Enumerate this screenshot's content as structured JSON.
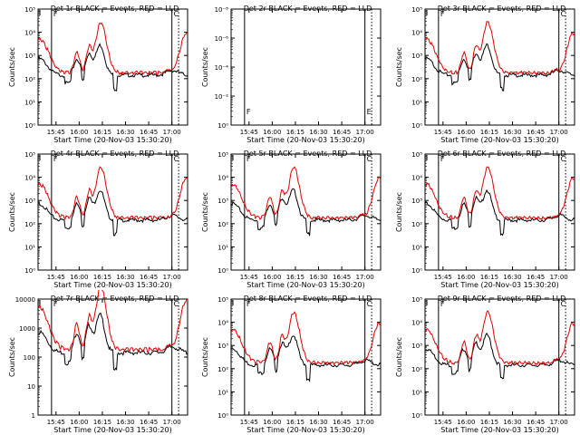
{
  "chart_data": [
    {
      "type": "line",
      "title": "Det 1r BLACK = Events, RED = LLD",
      "xlabel": "Start Time (20-Nov-03 15:30:20)",
      "ylabel": "Counts/sec",
      "x_tick_labels": [
        "15:45",
        "16:00",
        "16:15",
        "16:30",
        "16:45",
        "17:00"
      ],
      "y_tick_labels": [
        "10⁰",
        "10¹",
        "10²",
        "10³",
        "10⁴",
        "10⁵"
      ],
      "ylim": [
        1,
        100000
      ],
      "ylog": true,
      "markers": [
        "F",
        "C"
      ],
      "profile": "normal",
      "series": []
    },
    {
      "type": "line",
      "title": "Det 2r BLACK = Events, RED = LLD",
      "xlabel": "Start Time (20-Nov-03 15:30:20)",
      "ylabel": "Counts/sec",
      "x_tick_labels": [
        "15:45",
        "16:00",
        "16:15",
        "16:30",
        "16:45",
        "17:00"
      ],
      "y_tick_labels": [
        "10⁰",
        "10⁻²",
        "10⁻⁴",
        "10⁻⁶",
        "10⁻⁸"
      ],
      "ylim": [
        1,
        1e-08
      ],
      "ylog": true,
      "markers": [
        "F",
        "E"
      ],
      "profile": "empty",
      "series": []
    },
    {
      "type": "line",
      "title": "Det 3r BLACK = Events, RED = LLD",
      "xlabel": "Start Time (20-Nov-03 15:30:20)",
      "ylabel": "Counts/sec",
      "x_tick_labels": [
        "15:45",
        "16:00",
        "16:15",
        "16:30",
        "16:45",
        "17:00"
      ],
      "y_tick_labels": [
        "10⁰",
        "10¹",
        "10²",
        "10³",
        "10⁴",
        "10⁵"
      ],
      "ylim": [
        1,
        100000
      ],
      "ylog": true,
      "markers": [
        "F",
        "C"
      ],
      "profile": "normal",
      "series": []
    },
    {
      "type": "line",
      "title": "Det 4r BLACK = Events, RED = LLD",
      "xlabel": "Start Time (20-Nov-03 15:30:20)",
      "ylabel": "Counts/sec",
      "x_tick_labels": [
        "15:45",
        "16:00",
        "16:15",
        "16:30",
        "16:45",
        "17:00"
      ],
      "y_tick_labels": [
        "10⁰",
        "10¹",
        "10²",
        "10³",
        "10⁴",
        "10⁵"
      ],
      "ylim": [
        1,
        100000
      ],
      "ylog": true,
      "markers": [
        "F",
        "C"
      ],
      "profile": "normal",
      "series": []
    },
    {
      "type": "line",
      "title": "Det 5r BLACK = Events, RED = LLD",
      "xlabel": "Start Time (20-Nov-03 15:30:20)",
      "ylabel": "Counts/sec",
      "x_tick_labels": [
        "15:45",
        "16:00",
        "16:15",
        "16:30",
        "16:45",
        "17:00"
      ],
      "y_tick_labels": [
        "10⁰",
        "10¹",
        "10²",
        "10³",
        "10⁴",
        "10⁵"
      ],
      "ylim": [
        1,
        100000
      ],
      "ylog": true,
      "markers": [
        "F",
        "C"
      ],
      "profile": "normal",
      "series": []
    },
    {
      "type": "line",
      "title": "Det 6r BLACK = Events, RED = LLD",
      "xlabel": "Start Time (20-Nov-03 15:30:20)",
      "ylabel": "Counts/sec",
      "x_tick_labels": [
        "15:45",
        "16:00",
        "16:15",
        "16:30",
        "16:45",
        "17:00"
      ],
      "y_tick_labels": [
        "10⁰",
        "10¹",
        "10²",
        "10³",
        "10⁴",
        "10⁵"
      ],
      "ylim": [
        1,
        100000
      ],
      "ylog": true,
      "markers": [
        "F",
        "C"
      ],
      "profile": "normal",
      "series": []
    },
    {
      "type": "line",
      "title": "Det 7r BLACK = Events, RED = LLD",
      "xlabel": "Start Time (20-Nov-03 15:30:20)",
      "ylabel": "Counts/sec",
      "x_tick_labels": [
        "15:45",
        "16:00",
        "16:15",
        "16:30",
        "16:45",
        "17:00"
      ],
      "y_tick_labels": [
        "1",
        "10",
        "100",
        "1000",
        "10000"
      ],
      "ylim": [
        1,
        10000
      ],
      "ylog": true,
      "markers": [
        "F",
        "C"
      ],
      "profile": "normal",
      "series": []
    },
    {
      "type": "line",
      "title": "Det 8r BLACK = Events, RED = LLD",
      "xlabel": "Start Time (20-Nov-03 15:30:20)",
      "ylabel": "Counts/sec",
      "x_tick_labels": [
        "15:45",
        "16:00",
        "16:15",
        "16:30",
        "16:45",
        "17:00"
      ],
      "y_tick_labels": [
        "10⁰",
        "10¹",
        "10²",
        "10³",
        "10⁴",
        "10⁵"
      ],
      "ylim": [
        1,
        100000
      ],
      "ylog": true,
      "markers": [
        "F",
        "C"
      ],
      "profile": "normal",
      "series": []
    },
    {
      "type": "line",
      "title": "Det 9r BLACK = Events, RED = LLD",
      "xlabel": "Start Time (20-Nov-03 15:30:20)",
      "ylabel": "Counts/sec",
      "x_tick_labels": [
        "15:45",
        "16:00",
        "16:15",
        "16:30",
        "16:45",
        "17:00"
      ],
      "y_tick_labels": [
        "10⁰",
        "10¹",
        "10²",
        "10³",
        "10⁴",
        "10⁵"
      ],
      "ylim": [
        1,
        100000
      ],
      "ylog": true,
      "markers": [
        "F",
        "C"
      ],
      "profile": "normal",
      "series": []
    }
  ],
  "colors": {
    "events": "#000000",
    "lld": "#e00000",
    "axes": "#000000",
    "background": "#ffffff"
  }
}
